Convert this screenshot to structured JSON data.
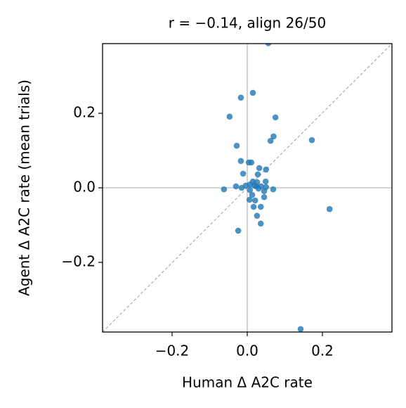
{
  "chart_data": {
    "type": "scatter",
    "title": "r = −0.14, align 26/50",
    "x_label": "Human Δ A2C rate",
    "y_label": "Agent Δ A2C rate (mean trials)",
    "color": "#1f77b4",
    "xlim": [
      -0.385,
      0.385
    ],
    "ylim": [
      -0.387,
      0.387
    ],
    "xticks": [
      {
        "value": -0.2,
        "label": "−0.2"
      },
      {
        "value": 0,
        "label": "0.0"
      },
      {
        "value": 0.2,
        "label": "0.2"
      }
    ],
    "yticks": [
      {
        "value": -0.2,
        "label": "−0.2"
      },
      {
        "value": 0,
        "label": "0.0"
      },
      {
        "value": 0.2,
        "label": "0.2"
      }
    ],
    "x": [
      0.056,
      0.015,
      -0.017,
      -0.047,
      0.075,
      0.07,
      0.062,
      0.172,
      -0.028,
      -0.017,
      0.004,
      0.011,
      0.032,
      0.05,
      0.028,
      -0.011,
      0.015,
      0.026,
      0.049,
      -0.062,
      -0.03,
      -0.015,
      -0.004,
      0.007,
      0.019,
      0.024,
      0.037,
      0.05,
      0.007,
      0.03,
      0.069,
      0.045,
      0.013,
      0.045,
      0.006,
      0.021,
      0.017,
      0.036,
      0.219,
      0.026,
      0.036,
      -0.024,
      0.142
    ],
    "y": [
      0.388,
      0.255,
      0.242,
      0.191,
      0.189,
      0.138,
      0.126,
      0.128,
      0.113,
      0.072,
      0.068,
      0.068,
      0.053,
      0.049,
      0.036,
      0.038,
      0.017,
      0.015,
      0.017,
      -0.004,
      0.004,
      0,
      0.006,
      0.009,
      0.006,
      0.004,
      0.004,
      0.002,
      -0.006,
      -0.002,
      -0.004,
      -0.009,
      -0.019,
      -0.025,
      -0.032,
      -0.034,
      -0.051,
      -0.051,
      -0.057,
      -0.075,
      -0.096,
      -0.115,
      -0.379
    ]
  }
}
